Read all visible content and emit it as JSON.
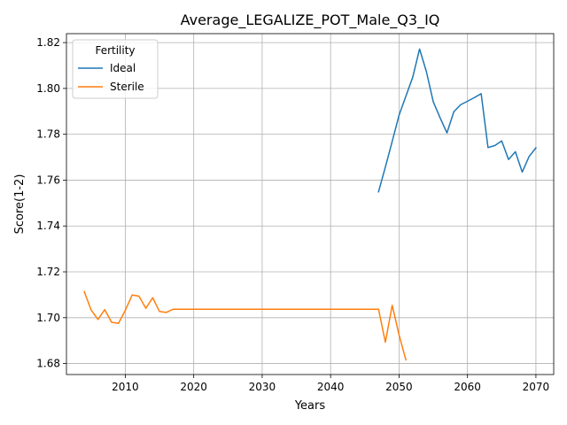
{
  "chart_data": {
    "type": "line",
    "title": "Average_LEGALIZE_POT_Male_Q3_IQ",
    "xlabel": "Years",
    "ylabel": "Score(1-2)",
    "xlim": [
      2001.4,
      2072.6
    ],
    "ylim": [
      1.6752,
      1.8239
    ],
    "xticks": [
      2010,
      2020,
      2030,
      2040,
      2050,
      2060,
      2070
    ],
    "yticks": [
      1.68,
      1.7,
      1.72,
      1.74,
      1.76,
      1.78,
      1.8,
      1.82
    ],
    "grid": true,
    "legend": {
      "title": "Fertility",
      "placement": "upper left"
    },
    "series": [
      {
        "name": "Ideal",
        "color": "#1f77b4",
        "x": [
          2047,
          2048,
          2049,
          2050,
          2051,
          2052,
          2053,
          2054,
          2055,
          2056,
          2057,
          2058,
          2059,
          2060,
          2061,
          2062,
          2063,
          2064,
          2065,
          2066,
          2067,
          2068,
          2069,
          2070
        ],
        "y": [
          1.7549,
          1.7657,
          1.7769,
          1.7883,
          1.7966,
          1.8049,
          1.8172,
          1.8073,
          1.7942,
          1.7872,
          1.7806,
          1.7898,
          1.7929,
          1.7944,
          1.796,
          1.7977,
          1.7742,
          1.7751,
          1.7771,
          1.769,
          1.7724,
          1.7635,
          1.7703,
          1.7741
        ]
      },
      {
        "name": "Sterile",
        "color": "#ff7f0e",
        "x": [
          2004,
          2005,
          2006,
          2007,
          2008,
          2009,
          2010,
          2011,
          2012,
          2013,
          2014,
          2015,
          2016,
          2017,
          2018,
          2020,
          2025,
          2030,
          2035,
          2040,
          2045,
          2047,
          2048,
          2049,
          2050,
          2051
        ],
        "y": [
          1.7114,
          1.7034,
          1.6992,
          1.7035,
          1.698,
          1.6975,
          1.7032,
          1.7099,
          1.7094,
          1.7041,
          1.7087,
          1.7027,
          1.7023,
          1.7037,
          1.7037,
          1.7037,
          1.7037,
          1.7037,
          1.7037,
          1.7037,
          1.7037,
          1.7037,
          1.6893,
          1.7054,
          1.6925,
          1.6816
        ]
      }
    ]
  }
}
